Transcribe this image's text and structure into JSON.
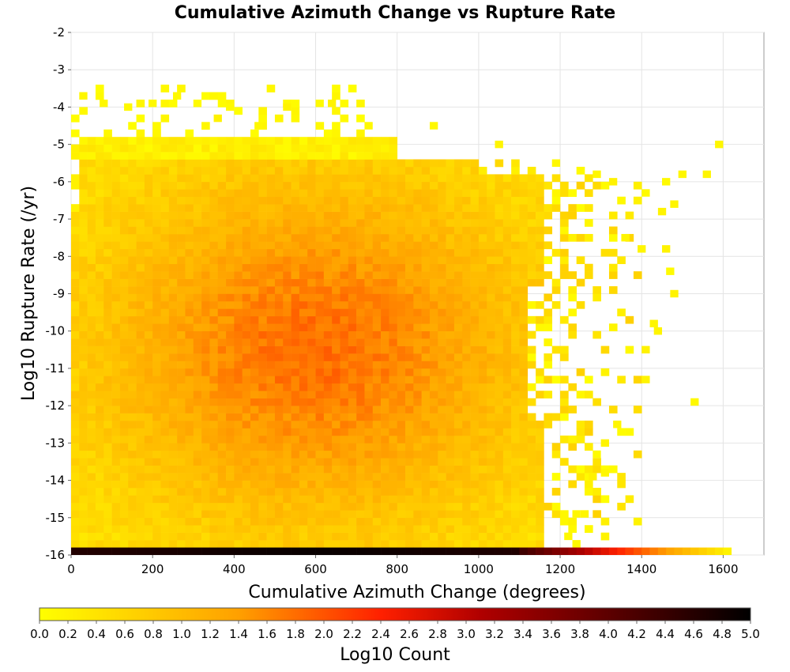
{
  "chart_data": {
    "type": "heatmap",
    "title": "Cumulative Azimuth Change vs Rupture Rate",
    "xlabel": "Cumulative Azimuth Change (degrees)",
    "ylabel": "Log10 Rupture Rate (/yr)",
    "xlim": [
      0,
      1700
    ],
    "ylim": [
      -16,
      -2
    ],
    "x_ticks": [
      "0",
      "200",
      "400",
      "600",
      "800",
      "1000",
      "1200",
      "1400",
      "1600"
    ],
    "y_ticks": [
      "-2",
      "-3",
      "-4",
      "-5",
      "-6",
      "-7",
      "-8",
      "-9",
      "-10",
      "-11",
      "-12",
      "-13",
      "-14",
      "-15",
      "-16"
    ],
    "grid": true,
    "colorbar": {
      "title": "Log10 Count",
      "range": [
        0.0,
        5.0
      ],
      "ticks": [
        "0.0",
        "0.2",
        "0.4",
        "0.6",
        "0.8",
        "1.0",
        "1.2",
        "1.4",
        "1.6",
        "1.8",
        "2.0",
        "2.2",
        "2.4",
        "2.6",
        "2.8",
        "3.0",
        "3.2",
        "3.4",
        "3.6",
        "3.8",
        "4.0",
        "4.2",
        "4.4",
        "4.6",
        "4.8",
        "5.0"
      ],
      "colors": [
        "#ffff00",
        "#ffa000",
        "#ff2000",
        "#b00000",
        "#000000"
      ],
      "position": "bottom"
    },
    "bin_size": {
      "x": 20,
      "y": 0.2
    },
    "density_summary": {
      "peak_log10_count": 1.9,
      "peak_x": 600,
      "peak_y": -10.5,
      "main_x_range": [
        0,
        1160
      ],
      "main_y_range": [
        -16,
        -5
      ],
      "bottom_row_y": -16,
      "bottom_row_log10_count_max": 4.9,
      "bottom_row_x_range": [
        0,
        1620
      ]
    },
    "sparse_cells": [
      [
        20,
        -3.8
      ],
      [
        70,
        -4.0
      ],
      [
        130,
        -4.1
      ],
      [
        190,
        -4.0
      ],
      [
        250,
        -3.8
      ],
      [
        300,
        -4.0
      ],
      [
        380,
        -4.1
      ],
      [
        520,
        -4.1
      ],
      [
        600,
        -4.0
      ],
      [
        630,
        -4.0
      ],
      [
        350,
        -4.4
      ],
      [
        450,
        -4.6
      ],
      [
        720,
        -4.6
      ],
      [
        880,
        -4.6
      ],
      [
        1040,
        -5.1
      ],
      [
        1180,
        -5.6
      ],
      [
        1280,
        -5.9
      ],
      [
        1320,
        -6.1
      ],
      [
        1400,
        -6.4
      ],
      [
        1450,
        -6.1
      ],
      [
        1470,
        -6.7
      ],
      [
        1440,
        -6.9
      ],
      [
        1490,
        -5.9
      ],
      [
        1550,
        -5.9
      ],
      [
        1580,
        -5.1
      ],
      [
        1350,
        -7.6
      ],
      [
        1390,
        -7.9
      ],
      [
        1450,
        -7.9
      ],
      [
        1460,
        -8.5
      ],
      [
        1470,
        -9.1
      ],
      [
        1420,
        -9.9
      ],
      [
        1430,
        -10.1
      ],
      [
        1400,
        -10.6
      ],
      [
        1400,
        -11.4
      ],
      [
        1520,
        -12.0
      ],
      [
        1330,
        -12.6
      ],
      [
        1300,
        -13.1
      ],
      [
        1280,
        -13.4
      ],
      [
        1300,
        -13.9
      ],
      [
        1270,
        -14.0
      ],
      [
        1230,
        -15.0
      ],
      [
        1250,
        -15.0
      ],
      [
        1210,
        -15.6
      ],
      [
        1230,
        -15.8
      ]
    ]
  }
}
